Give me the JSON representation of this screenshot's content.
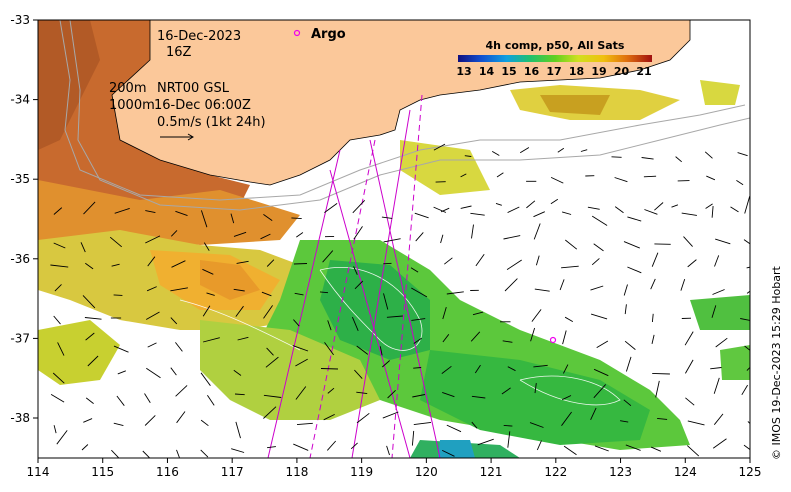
{
  "map": {
    "date": "16-Dec-2023",
    "hour": "16Z",
    "isobath_label": "200m",
    "isobath_label2": "1000m",
    "model_run": "NRT00 GSL",
    "model_time": "16-Dec 06:00Z",
    "vector_scale": "0.5m/s (1kt 24h)",
    "argo_label": "Argo",
    "colorbar_title": "4h comp, p50, All Sats",
    "colorbar_ticks": [
      "13",
      "14",
      "15",
      "16",
      "17",
      "18",
      "19",
      "20",
      "21"
    ],
    "x_ticks": [
      "114",
      "115",
      "116",
      "117",
      "118",
      "119",
      "120",
      "121",
      "122",
      "123",
      "124",
      "125"
    ],
    "y_ticks": [
      "-33",
      "-34",
      "-35",
      "-36",
      "-37",
      "-38"
    ],
    "copyright": "© IMOS 19-Dec-2023 15:29 Hobart",
    "colors": {
      "land": "#fbc89a",
      "track": "#cc00cc",
      "argo": "#ee00ee"
    }
  }
}
